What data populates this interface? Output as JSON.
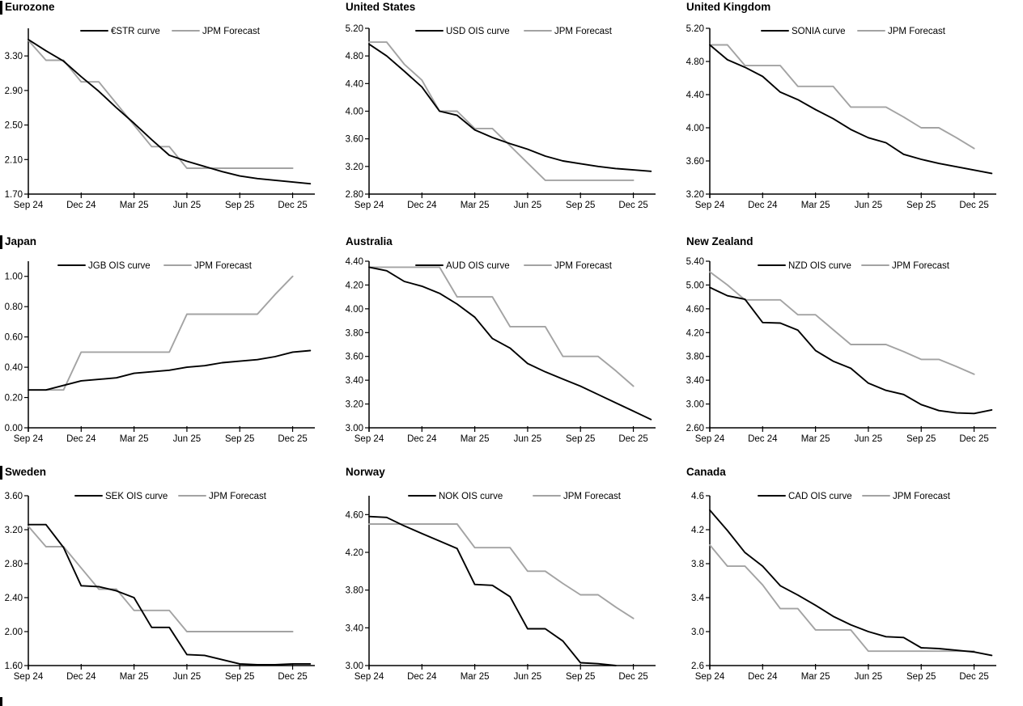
{
  "page": {
    "background": "#ffffff",
    "description": "3x3 grid of central bank rate OIS curves vs JPM forecasts"
  },
  "colors": {
    "ois": "#000000",
    "forecast": "#a3a3a3",
    "axis": "#000000",
    "section_bar": "#000000"
  },
  "x_tick_labels": [
    "Sep 24",
    "Dec 24",
    "Mar 25",
    "Jun 25",
    "Sep 25",
    "Dec 25"
  ],
  "chart_data": [
    {
      "id": "eurozone",
      "type": "line",
      "title": "Eurozone",
      "section_bar": true,
      "ylim": [
        1.7,
        3.62
      ],
      "yticks": [
        "3.30",
        "2.90",
        "2.50",
        "2.10",
        "1.70"
      ],
      "x_tick_labels": [
        "Sep 24",
        "Dec 24",
        "Mar 25",
        "Jun 25",
        "Sep 25",
        "Dec 25"
      ],
      "legend_position": "top-center",
      "legend_x": [
        100,
        213
      ],
      "series": [
        {
          "name": "€STR curve",
          "role": "ois",
          "values": [
            3.49,
            3.36,
            3.24,
            3.06,
            2.89,
            2.7,
            2.52,
            2.33,
            2.15,
            2.08,
            2.02,
            1.96,
            1.91,
            1.88,
            1.86,
            1.84,
            1.82
          ]
        },
        {
          "name": "JPM Forecast",
          "role": "forecast",
          "values": [
            3.48,
            3.25,
            3.25,
            3.0,
            3.0,
            2.75,
            2.5,
            2.25,
            2.25,
            2.0,
            2.0,
            2.0,
            2.0,
            2.0,
            2.0,
            2.0
          ]
        }
      ]
    },
    {
      "id": "united-states",
      "type": "line",
      "title": "United States",
      "section_bar": false,
      "ylim": [
        2.8,
        5.2
      ],
      "yticks": [
        "5.20",
        "4.80",
        "4.40",
        "4.00",
        "3.60",
        "3.20",
        "2.80"
      ],
      "x_tick_labels": [
        "Sep 24",
        "Dec 24",
        "Mar 25",
        "Jun 25",
        "Sep 25",
        "Dec 25"
      ],
      "legend_position": "top-center",
      "legend_x": [
        93,
        227
      ],
      "series": [
        {
          "name": "USD OIS curve",
          "role": "ois",
          "values": [
            4.97,
            4.8,
            4.58,
            4.35,
            4.0,
            3.94,
            3.73,
            3.62,
            3.53,
            3.45,
            3.35,
            3.28,
            3.24,
            3.2,
            3.17,
            3.15,
            3.13
          ]
        },
        {
          "name": "JPM Forecast",
          "role": "forecast",
          "values": [
            5.0,
            5.0,
            4.68,
            4.45,
            4.0,
            4.0,
            3.75,
            3.75,
            3.5,
            3.25,
            3.0,
            3.0,
            3.0,
            3.0,
            3.0,
            3.0
          ]
        }
      ]
    },
    {
      "id": "united-kingdom",
      "type": "line",
      "title": "United Kingdom",
      "section_bar": false,
      "ylim": [
        3.2,
        5.2
      ],
      "yticks": [
        "5.20",
        "4.80",
        "4.40",
        "4.00",
        "3.60",
        "3.20"
      ],
      "x_tick_labels": [
        "Sep 24",
        "Dec 24",
        "Mar 25",
        "Jun 25",
        "Sep 25",
        "Dec 25"
      ],
      "legend_position": "top-center",
      "legend_x": [
        99,
        218
      ],
      "series": [
        {
          "name": "SONIA curve",
          "role": "ois",
          "values": [
            5.0,
            4.82,
            4.73,
            4.62,
            4.43,
            4.34,
            4.22,
            4.11,
            3.98,
            3.88,
            3.82,
            3.68,
            3.62,
            3.57,
            3.53,
            3.49,
            3.45
          ]
        },
        {
          "name": "JPM Forecast",
          "role": "forecast",
          "values": [
            5.0,
            5.0,
            4.75,
            4.75,
            4.75,
            4.5,
            4.5,
            4.5,
            4.25,
            4.25,
            4.25,
            4.13,
            4.0,
            4.0,
            3.88,
            3.75
          ]
        }
      ]
    },
    {
      "id": "japan",
      "type": "line",
      "title": "Japan",
      "section_bar": true,
      "ylim": [
        0.0,
        1.1
      ],
      "yticks": [
        "1.00",
        "0.80",
        "0.60",
        "0.40",
        "0.20",
        "0.00"
      ],
      "x_tick_labels": [
        "Sep 24",
        "Dec 24",
        "Mar 25",
        "Jun 25",
        "Sep 25",
        "Dec 25"
      ],
      "legend_position": "top-center",
      "legend_x": [
        72,
        203
      ],
      "series": [
        {
          "name": "JGB OIS curve",
          "role": "ois",
          "values": [
            0.25,
            0.25,
            0.28,
            0.31,
            0.32,
            0.33,
            0.36,
            0.37,
            0.38,
            0.4,
            0.41,
            0.43,
            0.44,
            0.45,
            0.47,
            0.5,
            0.51
          ]
        },
        {
          "name": "JPM Forecast",
          "role": "forecast",
          "values": [
            0.25,
            0.25,
            0.25,
            0.5,
            0.5,
            0.5,
            0.5,
            0.5,
            0.5,
            0.75,
            0.75,
            0.75,
            0.75,
            0.75,
            0.88,
            1.0
          ]
        }
      ]
    },
    {
      "id": "australia",
      "type": "line",
      "title": "Australia",
      "section_bar": false,
      "ylim": [
        3.0,
        4.4
      ],
      "yticks": [
        "4.40",
        "4.20",
        "4.00",
        "3.80",
        "3.60",
        "3.40",
        "3.20",
        "3.00"
      ],
      "x_tick_labels": [
        "Sep 24",
        "Dec 24",
        "Mar 25",
        "Jun 25",
        "Sep 25",
        "Dec 25"
      ],
      "legend_position": "top-center",
      "legend_x": [
        93,
        227
      ],
      "series": [
        {
          "name": "AUD OIS curve",
          "role": "ois",
          "values": [
            4.35,
            4.32,
            4.23,
            4.19,
            4.13,
            4.04,
            3.93,
            3.75,
            3.67,
            3.54,
            3.47,
            3.41,
            3.35,
            3.28,
            3.21,
            3.14,
            3.07
          ]
        },
        {
          "name": "JPM Forecast",
          "role": "forecast",
          "values": [
            4.35,
            4.35,
            4.35,
            4.35,
            4.35,
            4.1,
            4.1,
            4.1,
            3.85,
            3.85,
            3.85,
            3.6,
            3.6,
            3.6,
            3.48,
            3.35
          ]
        }
      ]
    },
    {
      "id": "new-zealand",
      "type": "line",
      "title": "New Zealand",
      "section_bar": false,
      "ylim": [
        2.6,
        5.4
      ],
      "yticks": [
        "5.40",
        "5.00",
        "4.60",
        "4.20",
        "3.80",
        "3.40",
        "3.00",
        "2.60"
      ],
      "x_tick_labels": [
        "Sep 24",
        "Dec 24",
        "Mar 25",
        "Jun 25",
        "Sep 25",
        "Dec 25"
      ],
      "legend_position": "top-center",
      "legend_x": [
        95,
        223
      ],
      "series": [
        {
          "name": "NZD OIS curve",
          "role": "ois",
          "values": [
            4.96,
            4.82,
            4.76,
            4.37,
            4.36,
            4.24,
            3.9,
            3.72,
            3.6,
            3.35,
            3.23,
            3.16,
            2.99,
            2.89,
            2.85,
            2.84,
            2.9
          ]
        },
        {
          "name": "JPM Forecast",
          "role": "forecast",
          "values": [
            5.22,
            5.0,
            4.75,
            4.75,
            4.75,
            4.5,
            4.5,
            4.25,
            4.0,
            4.0,
            4.0,
            3.88,
            3.75,
            3.75,
            3.63,
            3.5
          ]
        }
      ]
    },
    {
      "id": "sweden",
      "type": "line",
      "title": "Sweden",
      "section_bar": true,
      "ylim": [
        1.6,
        3.6
      ],
      "yticks": [
        "3.60",
        "3.20",
        "2.80",
        "2.40",
        "2.00",
        "1.60"
      ],
      "x_tick_labels": [
        "Sep 24",
        "Dec 24",
        "Mar 25",
        "Jun 25",
        "Sep 25",
        "Dec 25"
      ],
      "legend_position": "top-center",
      "legend_x": [
        93,
        221
      ],
      "series": [
        {
          "name": "SEK OIS curve",
          "role": "ois",
          "values": [
            3.26,
            3.26,
            2.99,
            2.54,
            2.53,
            2.48,
            2.4,
            2.05,
            2.05,
            1.73,
            1.72,
            1.67,
            1.62,
            1.61,
            1.61,
            1.62,
            1.62
          ]
        },
        {
          "name": "JPM Forecast",
          "role": "forecast",
          "values": [
            3.24,
            3.0,
            3.0,
            2.75,
            2.5,
            2.5,
            2.25,
            2.25,
            2.25,
            2.0,
            2.0,
            2.0,
            2.0,
            2.0,
            2.0,
            2.0
          ]
        }
      ]
    },
    {
      "id": "norway",
      "type": "line",
      "title": "Norway",
      "section_bar": false,
      "ylim": [
        3.0,
        4.8
      ],
      "yticks": [
        "4.60",
        "4.20",
        "3.80",
        "3.40",
        "3.00"
      ],
      "x_tick_labels": [
        "Sep 24",
        "Dec 24",
        "Mar 25",
        "Jun 25",
        "Sep 25",
        "Dec 25"
      ],
      "legend_position": "top-center",
      "legend_x": [
        84,
        238
      ],
      "series": [
        {
          "name": "NOK OIS curve",
          "role": "ois",
          "values": [
            4.58,
            4.57,
            4.48,
            4.4,
            4.32,
            4.24,
            3.86,
            3.85,
            3.73,
            3.39,
            3.39,
            3.26,
            3.03,
            3.02,
            3.0
          ]
        },
        {
          "name": "JPM Forecast",
          "role": "forecast",
          "values": [
            4.5,
            4.5,
            4.5,
            4.5,
            4.5,
            4.5,
            4.25,
            4.25,
            4.25,
            4.0,
            4.0,
            3.87,
            3.75,
            3.75,
            3.62,
            3.5
          ]
        }
      ]
    },
    {
      "id": "canada",
      "type": "line",
      "title": "Canada",
      "section_bar": false,
      "ylim": [
        2.6,
        4.6
      ],
      "yticks": [
        "4.6",
        "4.2",
        "3.8",
        "3.4",
        "3.0",
        "2.6"
      ],
      "x_tick_labels": [
        "Sep 24",
        "Dec 24",
        "Mar 25",
        "Jun 25",
        "Sep 25",
        "Dec 25"
      ],
      "legend_position": "top-center",
      "legend_x": [
        95,
        224
      ],
      "series": [
        {
          "name": "CAD OIS curve",
          "role": "ois",
          "values": [
            4.43,
            4.19,
            3.93,
            3.77,
            3.54,
            3.43,
            3.31,
            3.18,
            3.08,
            3.0,
            2.94,
            2.93,
            2.81,
            2.8,
            2.78,
            2.76,
            2.72
          ]
        },
        {
          "name": "JPM Forecast",
          "role": "forecast",
          "values": [
            4.02,
            3.77,
            3.77,
            3.55,
            3.27,
            3.27,
            3.02,
            3.02,
            3.02,
            2.77,
            2.77,
            2.77,
            2.77,
            2.77,
            2.77,
            2.77
          ]
        }
      ]
    }
  ]
}
